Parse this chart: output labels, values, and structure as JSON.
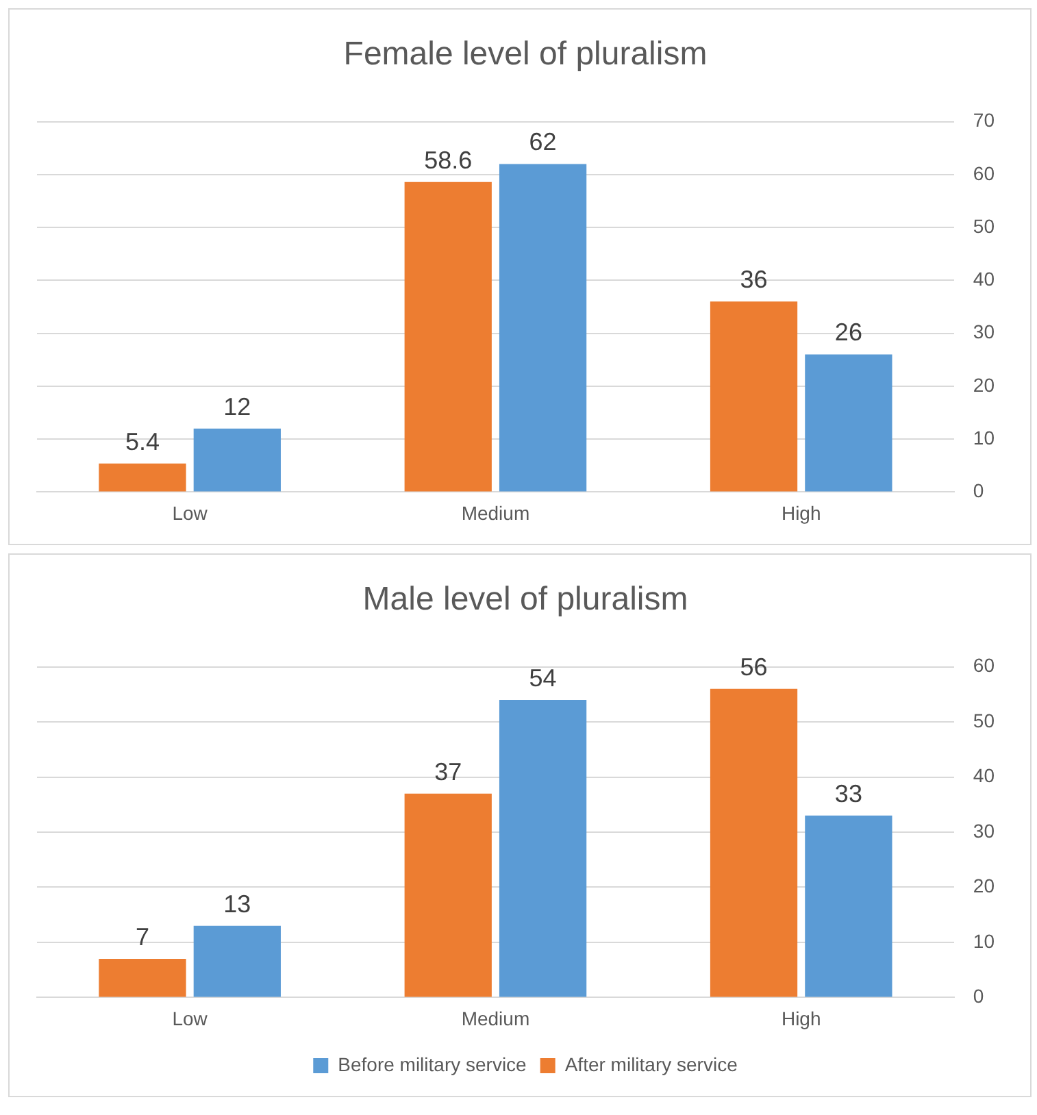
{
  "chart_data": [
    {
      "type": "bar",
      "title": "Female level of pluralism",
      "categories": [
        "Low",
        "Medium",
        "High"
      ],
      "series": [
        {
          "color": "#ed7d31",
          "values": [
            5.4,
            58.6,
            36
          ]
        },
        {
          "color": "#5b9bd5",
          "values": [
            12,
            62,
            26
          ]
        }
      ],
      "ylim": [
        0,
        70
      ],
      "yticks": [
        0,
        10,
        20,
        30,
        40,
        50,
        60,
        70
      ],
      "grid": "y",
      "data_labels": true,
      "legend": false
    },
    {
      "type": "bar",
      "title": "Male level of pluralism",
      "categories": [
        "Low",
        "Medium",
        "High"
      ],
      "series": [
        {
          "name": "After military service",
          "color": "#ed7d31",
          "values": [
            7,
            37,
            56
          ]
        },
        {
          "name": "Before military service",
          "color": "#5b9bd5",
          "values": [
            13,
            54,
            33
          ]
        }
      ],
      "ylim": [
        0,
        60
      ],
      "yticks": [
        0,
        10,
        20,
        30,
        40,
        50,
        60
      ],
      "grid": "y",
      "data_labels": true,
      "legend": "bottom"
    }
  ]
}
